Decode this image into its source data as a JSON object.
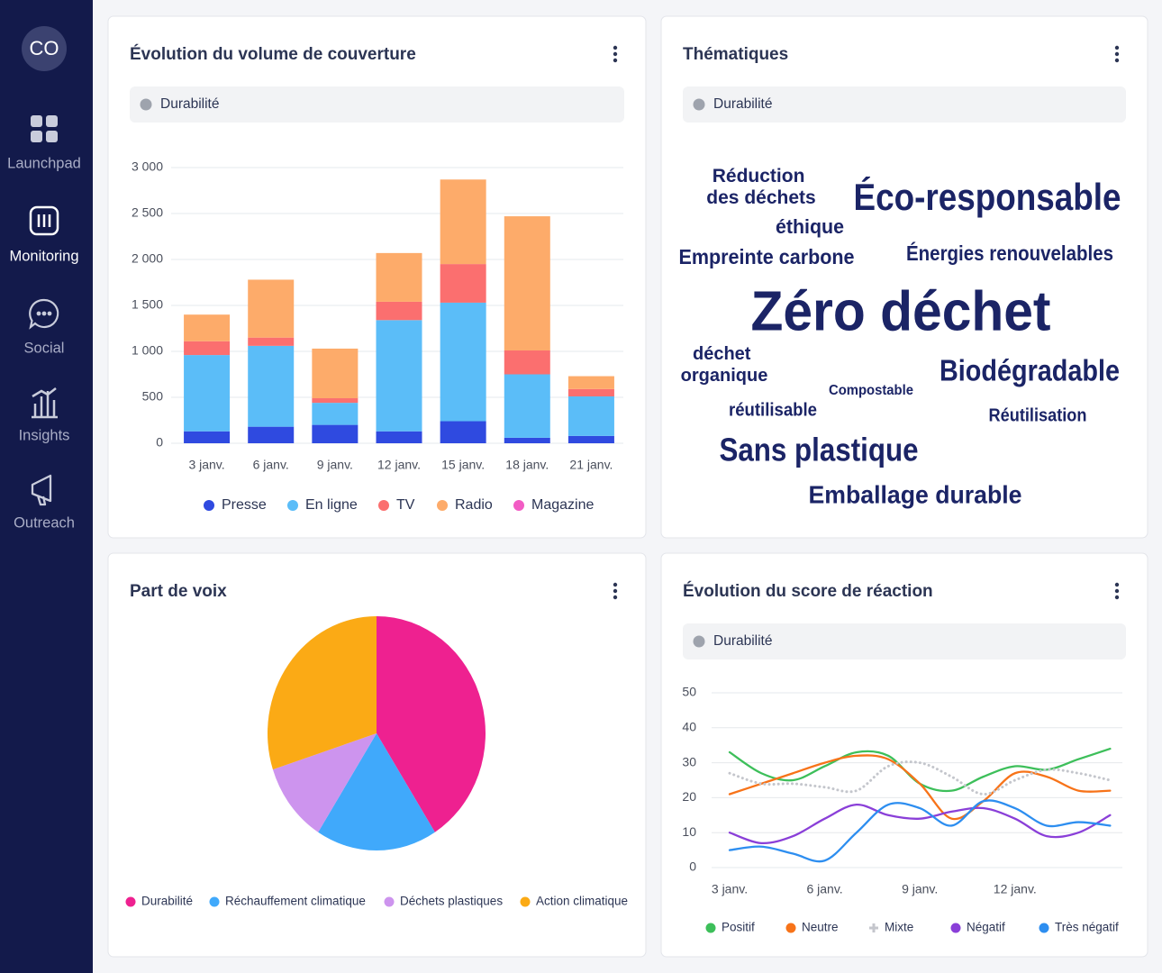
{
  "sidebar": {
    "avatar": "CO",
    "items": [
      "Launchpad",
      "Monitoring",
      "Social",
      "Insights",
      "Outreach"
    ],
    "active": 1
  },
  "chart_data": [
    {
      "type": "bar",
      "stacked": true,
      "title": "Évolution du volume de couverture",
      "filter": "Durabilité",
      "categories": [
        "3 janv.",
        "6 janv.",
        "9 janv.",
        "12 janv.",
        "15 janv.",
        "18 janv.",
        "21 janv."
      ],
      "series": [
        {
          "name": "Presse",
          "color": "#2f4ae0",
          "values": [
            130,
            180,
            200,
            130,
            240,
            60,
            80
          ]
        },
        {
          "name": "En ligne",
          "color": "#5bbdf8",
          "values": [
            830,
            880,
            240,
            1210,
            1290,
            690,
            430
          ]
        },
        {
          "name": "TV",
          "color": "#fb6f6f",
          "values": [
            150,
            90,
            50,
            200,
            420,
            260,
            80
          ]
        },
        {
          "name": "Radio",
          "color": "#fdab6a",
          "values": [
            290,
            630,
            540,
            530,
            920,
            1460,
            140
          ]
        },
        {
          "name": "Magazine",
          "color": "#f25cc4",
          "values": [
            0,
            0,
            0,
            0,
            0,
            0,
            0
          ]
        }
      ],
      "ylim": [
        0,
        3000
      ],
      "yticks": [
        0,
        500,
        {
          "value": 1000,
          "label": "1 000"
        },
        {
          "value": 1500,
          "label": "1 500"
        },
        {
          "value": 2000,
          "label": "2 000"
        },
        {
          "value": 2500,
          "label": "2 500"
        },
        {
          "value": 3000,
          "label": "3 000"
        }
      ],
      "grid": true,
      "legend": "bottom"
    },
    {
      "type": "wordcloud",
      "title": "Thématiques",
      "filter": "Durabilité",
      "color": "#1b2466",
      "words": [
        "Réduction des déchets",
        "Éco-responsable",
        "éthique",
        "Empreinte carbone",
        "Énergies renouvelables",
        "Zéro déchet",
        "déchet organique",
        "Compostable",
        "Biodégradable",
        "réutilisable",
        "Réutilisation",
        "Sans plastique",
        "Emballage durable"
      ]
    },
    {
      "type": "pie",
      "title": "Part de voix",
      "labels": [
        "Durabilité",
        "Réchauffement climatique",
        "Déchets plastiques",
        "Action climatique"
      ],
      "values": [
        41,
        18,
        11,
        30
      ],
      "colors": [
        "#ee2190",
        "#40a9fb",
        "#cd94ee",
        "#fbaa15"
      ],
      "legend": "bottom"
    },
    {
      "type": "line",
      "smooth": true,
      "title": "Évolution du score de réaction",
      "filter": "Durabilité",
      "categories": [
        "3 janv.",
        null,
        null,
        "6 janv.",
        null,
        null,
        "9 janv.",
        null,
        null,
        "12 janv.",
        null,
        null,
        null
      ],
      "series": [
        {
          "name": "Positif",
          "color": "#3dbf5a",
          "values": [
            33,
            27,
            25,
            29,
            33,
            32,
            24,
            22,
            26,
            29,
            28,
            31,
            34
          ]
        },
        {
          "name": "Neutre",
          "color": "#f77319",
          "values": [
            21,
            24,
            27,
            30,
            32,
            31,
            24,
            14,
            19,
            27,
            26,
            22,
            22
          ]
        },
        {
          "name": "Mixte",
          "color": "#c4c6cc",
          "style": "dotted",
          "values": [
            27,
            24,
            24,
            23,
            22,
            29,
            30,
            26,
            21,
            25,
            28,
            27,
            25
          ]
        },
        {
          "name": "Négatif",
          "color": "#8a3fd8",
          "values": [
            10,
            7,
            9,
            14,
            18,
            15,
            14,
            16,
            17,
            14,
            9,
            10,
            15
          ]
        },
        {
          "name": "Très négatif",
          "color": "#2d8ef0",
          "values": [
            5,
            6,
            4,
            2,
            10,
            18,
            17,
            12,
            19,
            17,
            12,
            13,
            12
          ]
        }
      ],
      "ylim": [
        0,
        50
      ],
      "yticks": [
        0,
        10,
        20,
        30,
        40,
        50
      ],
      "grid": true,
      "legend": "bottom"
    }
  ]
}
